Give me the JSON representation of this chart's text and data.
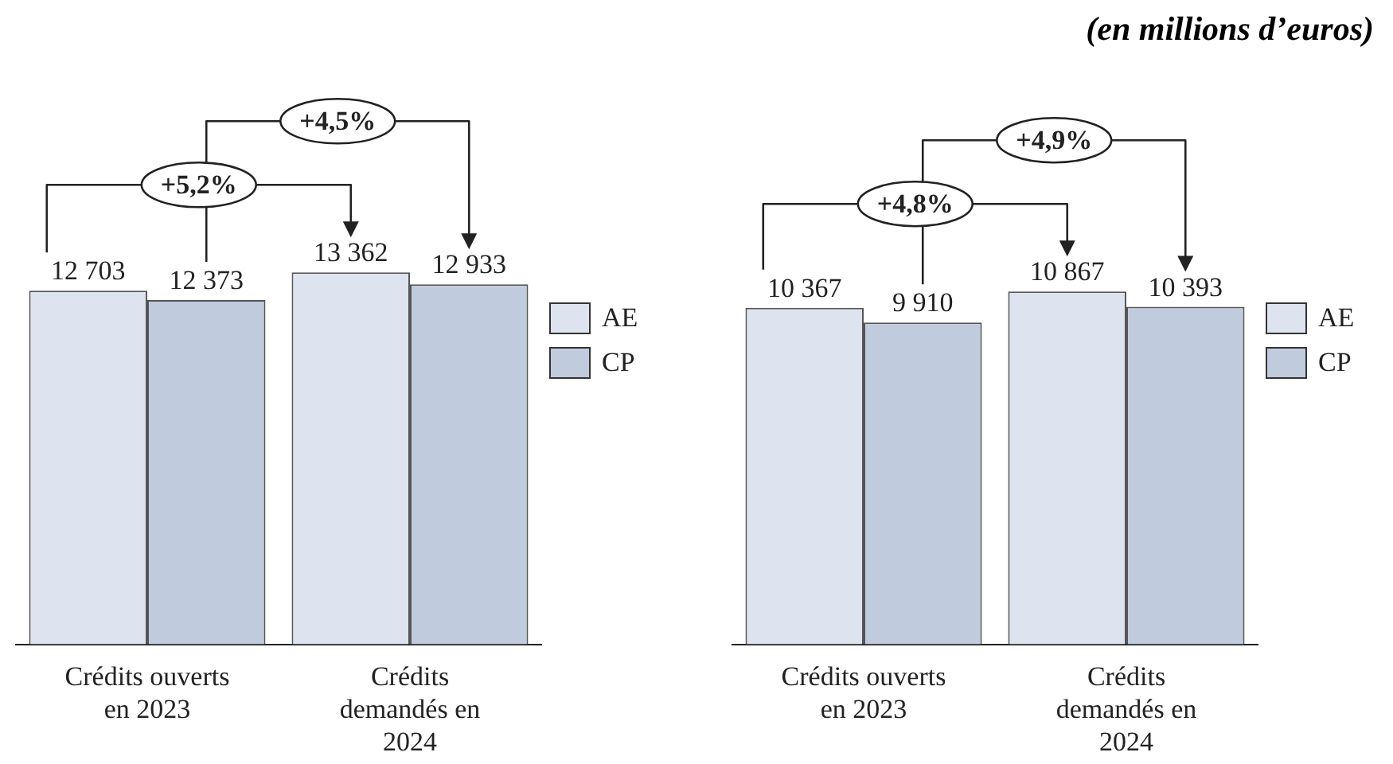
{
  "chart_data": [
    {
      "type": "bar",
      "categories": [
        "Crédits ouverts en 2023",
        "Crédits demandés en 2024"
      ],
      "legend": "right",
      "data_labels": true,
      "series": [
        {
          "name": "AE",
          "color": "#dde3ef",
          "values": [
            12703,
            13362
          ],
          "value_labels": [
            "12 703",
            "13 362"
          ]
        },
        {
          "name": "CP",
          "color": "#c1cbde",
          "values": [
            12373,
            12933
          ],
          "value_labels": [
            "12 373",
            "12 933"
          ]
        }
      ],
      "annotations": [
        "+5,2%",
        "+4,5%"
      ]
    },
    {
      "type": "bar",
      "categories": [
        "Crédits ouverts en 2023",
        "Crédits demandés en 2024"
      ],
      "legend": "right",
      "data_labels": true,
      "series": [
        {
          "name": "AE",
          "color": "#dde3ef",
          "values": [
            10367,
            10867
          ],
          "value_labels": [
            "10 367",
            "10 867"
          ]
        },
        {
          "name": "CP",
          "color": "#c1cbde",
          "values": [
            9910,
            10393
          ],
          "value_labels": [
            "9 910",
            "10 393"
          ]
        }
      ],
      "annotations": [
        "+4,8%",
        "+4,9%",
        "(en millions d’euros)"
      ]
    }
  ]
}
